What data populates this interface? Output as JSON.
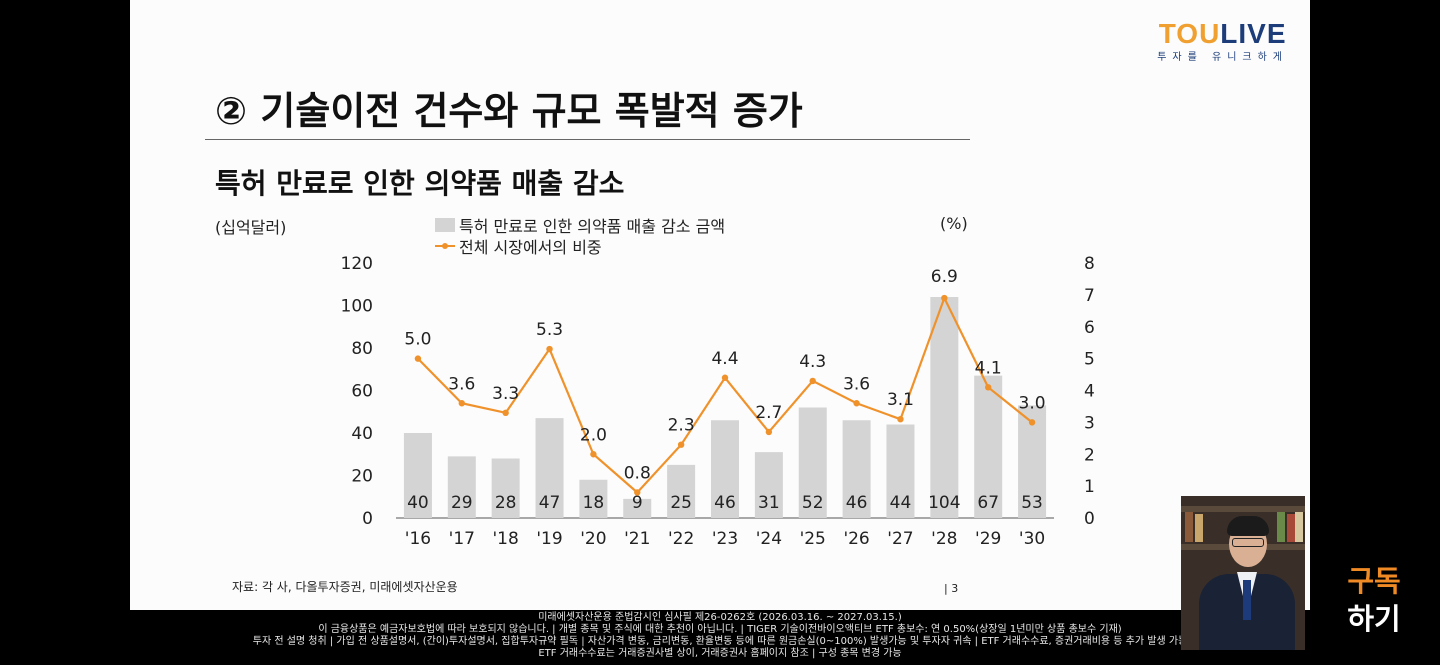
{
  "logo": {
    "main_left": "TOU",
    "main_right": "LIVE",
    "sub": "투자를 유니크하게"
  },
  "slide": {
    "title": "② 기술이전 건수와 규모 폭발적 증가",
    "source": "자료: 각 사, 다올투자증권, 미래에셋자산운용",
    "page": "| 3"
  },
  "chart_data": {
    "type": "bar",
    "title": "특허 만료로 인한 의약품 매출 감소",
    "ylabel": "(십억달러)",
    "y2label": "(%)",
    "categories": [
      "'16",
      "'17",
      "'18",
      "'19",
      "'20",
      "'21",
      "'22",
      "'23",
      "'24",
      "'25",
      "'26",
      "'27",
      "'28",
      "'29",
      "'30"
    ],
    "series": [
      {
        "name": "특허 만료로 인한 의약품 매출 감소 금액",
        "axis": "left",
        "kind": "bar",
        "values": [
          40,
          29,
          28,
          47,
          18,
          9,
          25,
          46,
          31,
          52,
          46,
          44,
          104,
          67,
          53
        ]
      },
      {
        "name": "전체 시장에서의 비중",
        "axis": "right",
        "kind": "line",
        "values": [
          5.0,
          3.6,
          3.3,
          5.3,
          2.0,
          0.8,
          2.3,
          4.4,
          2.7,
          4.3,
          3.6,
          3.1,
          6.9,
          4.1,
          3.0
        ]
      }
    ],
    "ylim": [
      0,
      120
    ],
    "y2lim": [
      0,
      8
    ],
    "yticks": [
      "0",
      "20",
      "40",
      "60",
      "80",
      "100",
      "120"
    ],
    "y2ticks": [
      "0",
      "1",
      "2",
      "3",
      "4",
      "5",
      "6",
      "7",
      "8"
    ],
    "colors": {
      "bar": "#d4d4d4",
      "line": "#f0922b",
      "axis": "#555555"
    }
  },
  "disclaimer": {
    "line1": "미래에셋자산운용 준법감시인 심사필 제26-0262호 (2026.03.16. ~ 2027.03.15.)",
    "line2": "이 금융상품은 예금자보호법에 따라 보호되지 않습니다. | 개별 종목 및 주식에 대한 추천이 아닙니다. | TIGER 기술이전바이오액티브 ETF 총보수: 연 0.50%(상장일 1년미만 상품 총보수 기재)",
    "line3": "투자 전 설명 청취 | 가입 전 상품설명서, (간이)투자설명서, 집합투자규약 필독 | 자산가격 변동, 금리변동, 환율변동 등에 따른 원금손실(0~100%) 발생가능 및 투자자 귀속 | ETF 거래수수료, 증권거래비용 등 추가 발생 가능",
    "line4": "ETF 거래수수료는 거래증권사별 상이, 거래증권사 홈페이지 참조 | 구성 종목 변경 가능"
  },
  "overlay": {
    "subscribe_line1": "구독",
    "subscribe_line2": "하기"
  }
}
